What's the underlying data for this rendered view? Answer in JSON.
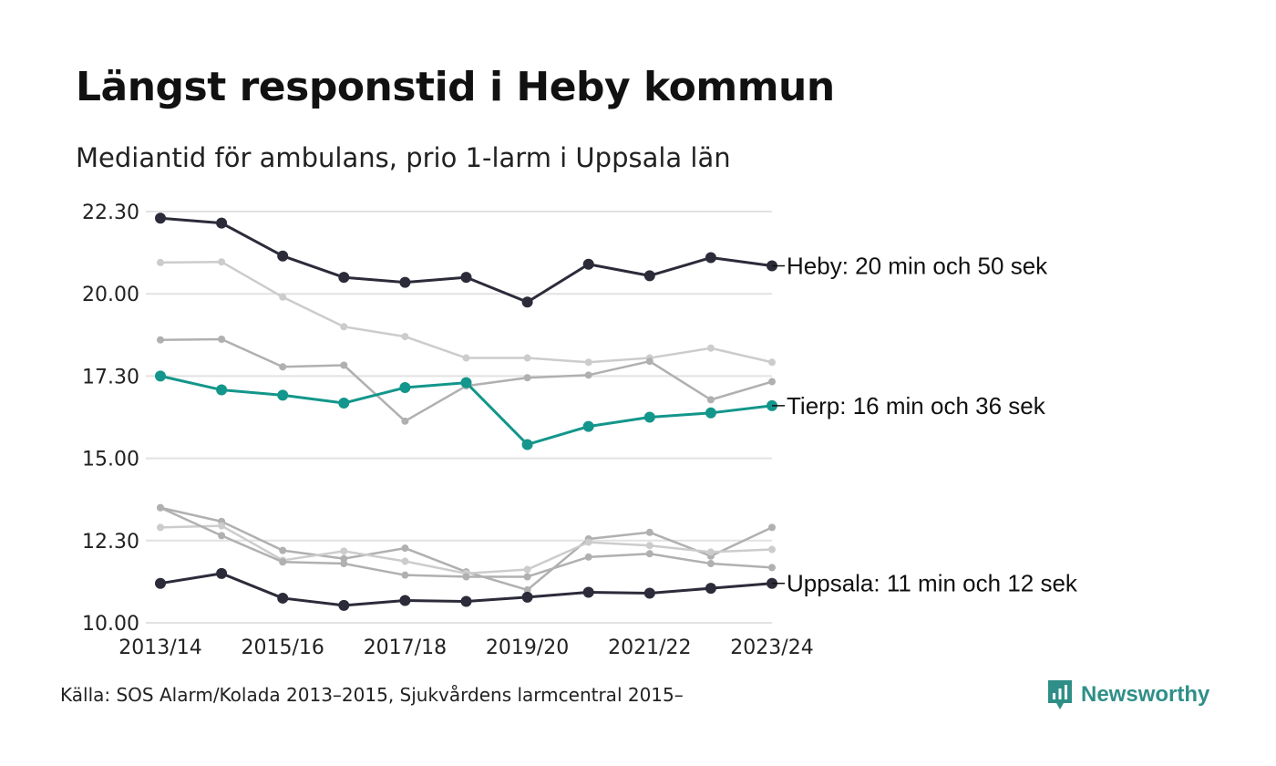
{
  "title": "Längst responstid i Heby kommun",
  "subtitle": "Mediantid för ambulans, prio 1-larm i Uppsala län",
  "source": "Källa: SOS Alarm/Kolada 2013–2015, Sjukvårdens larmcentral 2015–",
  "brand": {
    "name": "Newsworthy",
    "icon": "newsworthy-logo-icon",
    "color": "#2f8f88"
  },
  "chart_data": {
    "type": "line",
    "x_labels": [
      "2013/14",
      "",
      "2015/16",
      "",
      "2017/18",
      "",
      "2019/20",
      "",
      "2021/22",
      "",
      "2023/24"
    ],
    "x": [
      "2013/14",
      "2014/15",
      "2015/16",
      "2016/17",
      "2017/18",
      "2018/19",
      "2019/20",
      "2020/21",
      "2021/22",
      "2022/23",
      "2023/24"
    ],
    "y_ticks": [
      {
        "label": "10.00",
        "minutes": 10
      },
      {
        "label": "12.30",
        "minutes": 12.5
      },
      {
        "label": "15.00",
        "minutes": 15
      },
      {
        "label": "17.30",
        "minutes": 17.5
      },
      {
        "label": "20.00",
        "minutes": 20
      },
      {
        "label": "22.30",
        "minutes": 22.5
      }
    ],
    "y_unit": "minutes",
    "ylim": [
      10,
      22.5
    ],
    "grid": true,
    "highlight": [
      {
        "label": "Heby: 20 min och 50 sek",
        "color": "#2b2b3a",
        "values": [
          22.3,
          22.15,
          21.15,
          20.5,
          20.35,
          20.5,
          19.75,
          20.9,
          20.55,
          21.1,
          20.85
        ]
      },
      {
        "label": "Tierp: 16 min och 36 sek",
        "color": "#13968b",
        "values": [
          17.5,
          17.08,
          16.92,
          16.68,
          17.15,
          17.3,
          15.42,
          15.97,
          16.25,
          16.38,
          16.6
        ]
      },
      {
        "label": "Uppsala: 11 min och 12 sek",
        "color": "#2b2b3a",
        "values": [
          11.2,
          11.5,
          10.75,
          10.53,
          10.68,
          10.65,
          10.78,
          10.93,
          10.9,
          11.05,
          11.2
        ]
      }
    ],
    "background_series": [
      {
        "color": "#cccccc",
        "values": [
          20.95,
          20.97,
          19.9,
          19.0,
          18.7,
          18.05,
          18.05,
          17.92,
          18.05,
          18.35,
          17.92
        ]
      },
      {
        "color": "#b0b0b0",
        "values": [
          18.6,
          18.62,
          17.78,
          17.83,
          16.13,
          17.2,
          17.45,
          17.53,
          17.95,
          16.78,
          17.33
        ]
      },
      {
        "color": "#b0b0b0",
        "values": [
          13.5,
          13.08,
          12.2,
          11.95,
          12.27,
          11.55,
          11.0,
          12.55,
          12.75,
          12.03,
          12.9
        ]
      },
      {
        "color": "#cccccc",
        "values": [
          12.9,
          12.95,
          11.9,
          12.18,
          11.87,
          11.5,
          11.62,
          12.45,
          12.35,
          12.15,
          12.23
        ]
      },
      {
        "color": "#b0b0b0",
        "values": [
          13.5,
          12.65,
          11.85,
          11.8,
          11.45,
          11.4,
          11.4,
          12.0,
          12.1,
          11.8,
          11.68
        ]
      }
    ]
  }
}
